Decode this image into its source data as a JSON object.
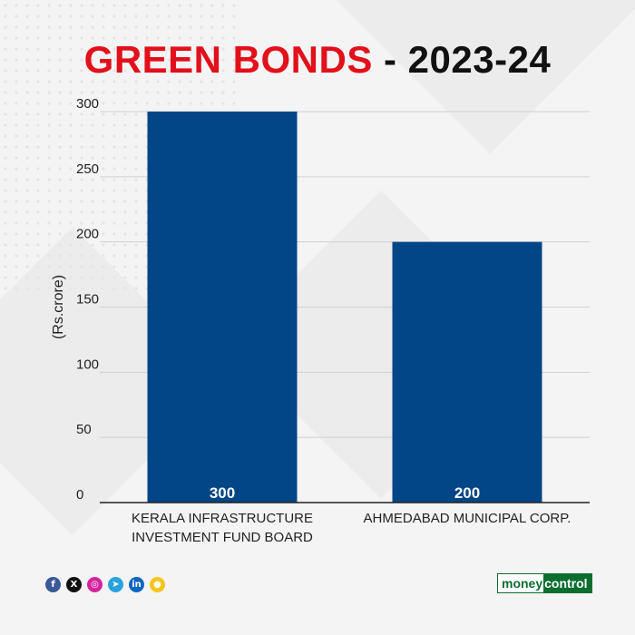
{
  "title": {
    "part1": "GREEN BONDS",
    "part2": " - 2023-24"
  },
  "colors": {
    "title_accent": "#e2101b",
    "bar": "#034687",
    "grid": "#d0d0d0",
    "axis": "#222222"
  },
  "chart_data": {
    "type": "bar",
    "title": "GREEN BONDS - 2023-24",
    "categories": [
      [
        "KERALA INFRASTRUCTURE",
        "INVESTMENT FUND BOARD"
      ],
      [
        "AHMEDABAD MUNICIPAL CORP."
      ]
    ],
    "values": [
      300,
      200
    ],
    "data_labels": [
      "300",
      "200"
    ],
    "ylabel": "(Rs.crore)",
    "ylim": [
      0,
      300
    ],
    "yticks": [
      0,
      50,
      100,
      150,
      200,
      250,
      300
    ],
    "grid": true,
    "legend": "none"
  },
  "social_icons": [
    {
      "name": "facebook-icon",
      "glyph": "f",
      "color": "#3b5998"
    },
    {
      "name": "x-icon",
      "glyph": "X",
      "color": "#111111"
    },
    {
      "name": "instagram-icon",
      "glyph": "◎",
      "color": "#d6249f"
    },
    {
      "name": "telegram-icon",
      "glyph": "➤",
      "color": "#2aa3dc"
    },
    {
      "name": "linkedin-icon",
      "glyph": "in",
      "color": "#0a66c2"
    },
    {
      "name": "koo-icon",
      "glyph": "●",
      "color": "#f5c518"
    }
  ],
  "brand": {
    "part1": "money",
    "part2": "control"
  }
}
